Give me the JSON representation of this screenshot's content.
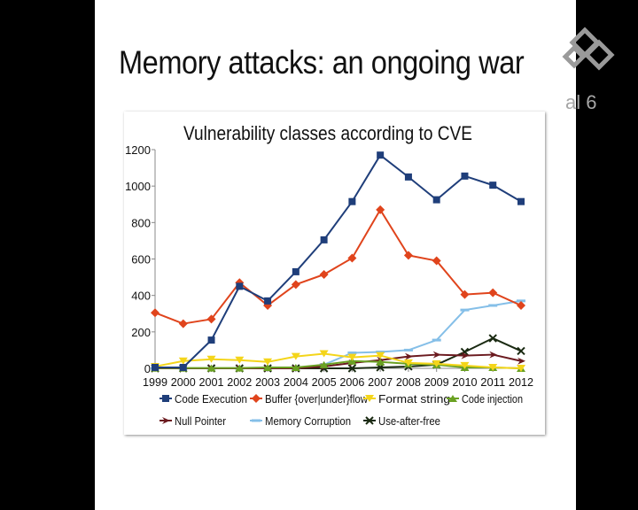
{
  "slide": {
    "title": "Memory attacks: an ongoing war"
  },
  "overlay": {
    "logo_text": "al 6"
  },
  "colors": {
    "slide_background": "#ffffff",
    "screen_background": "#000000"
  },
  "chart_data": {
    "type": "line",
    "title": "Vulnerability classes according to CVE",
    "xlabel": "",
    "ylabel": "",
    "categories": [
      "1999",
      "2000",
      "2001",
      "2002",
      "2003",
      "2004",
      "2005",
      "2006",
      "2007",
      "2008",
      "2009",
      "2010",
      "2011",
      "2012"
    ],
    "ylim": [
      0,
      1200
    ],
    "yticks": [
      0,
      200,
      400,
      600,
      800,
      1000,
      1200
    ],
    "grid": false,
    "legend_position": "bottom",
    "series": [
      {
        "name": "Code Execution",
        "color": "#1f3e7a",
        "marker": "square",
        "values": [
          5,
          5,
          155,
          450,
          370,
          530,
          705,
          915,
          1170,
          1050,
          925,
          1055,
          1005,
          915
        ]
      },
      {
        "name": "Buffer {over|under}flow",
        "color": "#e0441c",
        "marker": "diamond",
        "values": [
          305,
          245,
          270,
          470,
          345,
          460,
          515,
          605,
          870,
          620,
          590,
          405,
          415,
          345
        ]
      },
      {
        "name": "Format string",
        "color": "#f4d51a",
        "marker": "triangle-down",
        "values": [
          10,
          40,
          50,
          45,
          35,
          65,
          80,
          60,
          70,
          30,
          25,
          15,
          5,
          0
        ]
      },
      {
        "name": "Code injection",
        "color": "#6aa122",
        "marker": "triangle-up",
        "values": [
          2,
          2,
          2,
          2,
          5,
          5,
          20,
          40,
          35,
          25,
          20,
          5,
          5,
          0
        ]
      },
      {
        "name": "Null Pointer",
        "color": "#6b1a1f",
        "marker": "arrow-right",
        "values": [
          0,
          0,
          0,
          0,
          0,
          0,
          10,
          30,
          45,
          65,
          75,
          70,
          75,
          40
        ]
      },
      {
        "name": "Memory Corruption",
        "color": "#85bfe8",
        "marker": "dash",
        "values": [
          0,
          0,
          0,
          0,
          0,
          0,
          20,
          85,
          90,
          100,
          155,
          320,
          345,
          370
        ]
      },
      {
        "name": "Use-after-free",
        "color": "#1a2a12",
        "marker": "x",
        "values": [
          0,
          0,
          0,
          0,
          0,
          0,
          0,
          0,
          5,
          10,
          20,
          90,
          165,
          95
        ]
      }
    ]
  }
}
